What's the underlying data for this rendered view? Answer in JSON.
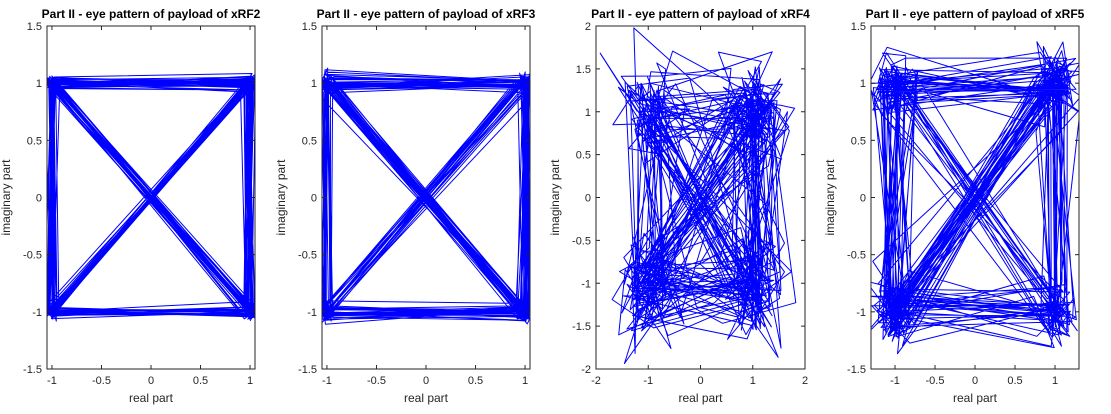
{
  "chart_data": [
    {
      "type": "line",
      "title": "Part II - eye pattern of payload of xRF2",
      "xlabel": "real part",
      "ylabel": "imaginary part",
      "xlim": [
        -1.05,
        1.05
      ],
      "ylim": [
        -1.5,
        1.5
      ],
      "xticks": [
        -1,
        -0.5,
        0,
        0.5,
        1
      ],
      "yticks": [
        -1.5,
        -1,
        -0.5,
        0,
        0.5,
        1,
        1.5
      ],
      "grid": false,
      "series_color": "#0000ff",
      "constellation": [
        [
          1,
          1
        ],
        [
          -1,
          1
        ],
        [
          -1,
          -1
        ],
        [
          1,
          -1
        ]
      ],
      "spread": 0.03,
      "transitions": 220
    },
    {
      "type": "line",
      "title": "Part II - eye pattern of payload of xRF3",
      "xlabel": "real part",
      "ylabel": "imaginary part",
      "xlim": [
        -1.05,
        1.05
      ],
      "ylim": [
        -1.5,
        1.5
      ],
      "xticks": [
        -1,
        -0.5,
        0,
        0.5,
        1
      ],
      "yticks": [
        -1.5,
        -1,
        -0.5,
        0,
        0.5,
        1,
        1.5
      ],
      "grid": false,
      "series_color": "#0000ff",
      "constellation": [
        [
          1,
          1
        ],
        [
          -1,
          1
        ],
        [
          -1,
          -1
        ],
        [
          1,
          -1
        ]
      ],
      "spread": 0.04,
      "transitions": 220
    },
    {
      "type": "line",
      "title": "Part II - eye pattern of payload of xRF4",
      "xlabel": "real part",
      "ylabel": "imaginary part",
      "xlim": [
        -2,
        2
      ],
      "ylim": [
        -2,
        2
      ],
      "xticks": [
        -2,
        -1,
        0,
        1,
        2
      ],
      "yticks": [
        -2,
        -1.5,
        -1,
        -0.5,
        0,
        0.5,
        1,
        1.5,
        2
      ],
      "grid": false,
      "series_color": "#0000ff",
      "constellation": [
        [
          1,
          1
        ],
        [
          -1,
          1
        ],
        [
          -1,
          -1
        ],
        [
          1,
          -1
        ]
      ],
      "spread": 0.3,
      "transitions": 260
    },
    {
      "type": "line",
      "title": "Part II - eye pattern of payload of xRF5",
      "xlabel": "real part",
      "ylabel": "imaginary part",
      "xlim": [
        -1.3,
        1.3
      ],
      "ylim": [
        -1.5,
        1.5
      ],
      "xticks": [
        -1,
        -0.5,
        0,
        0.5,
        1
      ],
      "yticks": [
        -1.5,
        -1,
        -0.5,
        0,
        0.5,
        1,
        1.5
      ],
      "grid": false,
      "series_color": "#0000ff",
      "constellation": [
        [
          1,
          1
        ],
        [
          -1,
          1
        ],
        [
          -1,
          -1
        ],
        [
          1,
          -1
        ]
      ],
      "spread": 0.14,
      "transitions": 240
    }
  ]
}
